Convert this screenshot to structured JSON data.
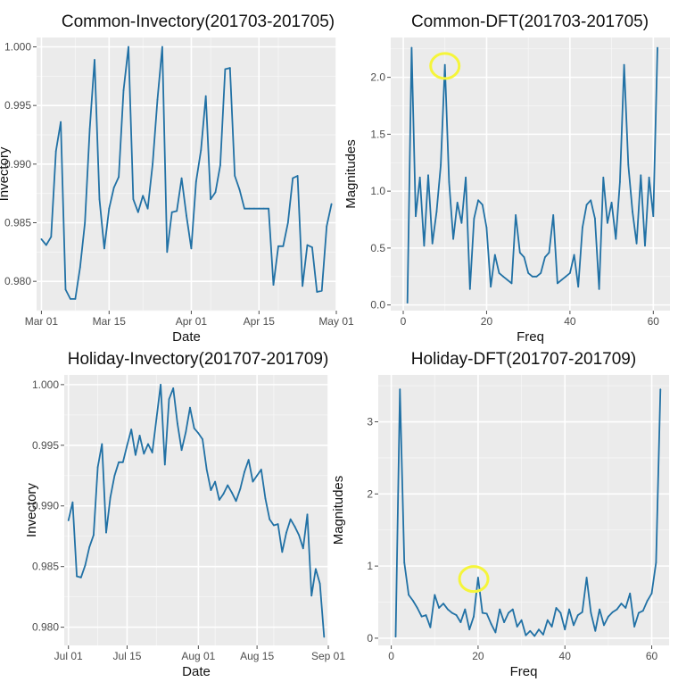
{
  "chart_data": [
    {
      "type": "line",
      "title": "Common-Invectory(201703-201705)",
      "xlabel": "Date",
      "ylabel": "Invectory",
      "x_axis": "date",
      "xlim": [
        "2017-02-28",
        "2017-05-01"
      ],
      "ylim": [
        0.9775,
        1.0008
      ],
      "x_ticks": [
        "2017-03-01",
        "2017-03-15",
        "2017-04-01",
        "2017-04-15",
        "2017-05-01"
      ],
      "x_tick_labels": [
        "Mar 01",
        "Mar 15",
        "Apr 01",
        "Apr 15",
        "May 01"
      ],
      "y_ticks": [
        0.98,
        0.985,
        0.99,
        0.995,
        1.0
      ],
      "y_tick_labels": [
        "0.980",
        "0.985",
        "0.990",
        "0.995",
        "1.000"
      ],
      "grid": true,
      "series": [
        {
          "color": "#2171a5",
          "x": [
            "2017-03-01",
            "2017-03-02",
            "2017-03-03",
            "2017-03-04",
            "2017-03-05",
            "2017-03-06",
            "2017-03-07",
            "2017-03-08",
            "2017-03-09",
            "2017-03-10",
            "2017-03-11",
            "2017-03-12",
            "2017-03-13",
            "2017-03-14",
            "2017-03-15",
            "2017-03-16",
            "2017-03-17",
            "2017-03-18",
            "2017-03-19",
            "2017-03-20",
            "2017-03-21",
            "2017-03-22",
            "2017-03-23",
            "2017-03-24",
            "2017-03-25",
            "2017-03-26",
            "2017-03-27",
            "2017-03-28",
            "2017-03-29",
            "2017-03-30",
            "2017-03-31",
            "2017-04-01",
            "2017-04-02",
            "2017-04-03",
            "2017-04-04",
            "2017-04-05",
            "2017-04-06",
            "2017-04-07",
            "2017-04-08",
            "2017-04-09",
            "2017-04-10",
            "2017-04-11",
            "2017-04-12",
            "2017-04-13",
            "2017-04-14",
            "2017-04-15",
            "2017-04-16",
            "2017-04-17",
            "2017-04-18",
            "2017-04-19",
            "2017-04-20",
            "2017-04-21",
            "2017-04-22",
            "2017-04-23",
            "2017-04-24",
            "2017-04-25",
            "2017-04-26",
            "2017-04-27",
            "2017-04-28",
            "2017-04-29",
            "2017-04-30"
          ],
          "y": [
            0.9836,
            0.9831,
            0.9838,
            0.9911,
            0.9936,
            0.9793,
            0.9785,
            0.9785,
            0.9812,
            0.985,
            0.993,
            0.9989,
            0.987,
            0.9828,
            0.9862,
            0.988,
            0.9889,
            0.9963,
            1.0,
            0.987,
            0.9859,
            0.9873,
            0.9862,
            0.99,
            0.9955,
            1.0,
            0.9825,
            0.9859,
            0.986,
            0.9888,
            0.9856,
            0.9828,
            0.9885,
            0.9912,
            0.9958,
            0.987,
            0.9876,
            0.9899,
            0.9981,
            0.9982,
            0.989,
            0.9878,
            0.9862,
            0.9862,
            0.9862,
            0.9862,
            0.9862,
            0.9862,
            0.9797,
            0.983,
            0.983,
            0.985,
            0.9888,
            0.989,
            0.9796,
            0.9831,
            0.9829,
            0.9791,
            0.9792,
            0.9847,
            0.9866
          ]
        }
      ]
    },
    {
      "type": "line",
      "title": "Common-DFT(201703-201705)",
      "xlabel": "Freq",
      "ylabel": "Magnitudes",
      "xlim": [
        -3,
        64
      ],
      "ylim": [
        -0.05,
        2.35
      ],
      "x_ticks": [
        0,
        20,
        40,
        60
      ],
      "x_tick_labels": [
        "0",
        "20",
        "40",
        "60"
      ],
      "y_ticks": [
        0.0,
        0.5,
        1.0,
        1.5,
        2.0
      ],
      "y_tick_labels": [
        "0.0",
        "0.5",
        "1.0",
        "1.5",
        "2.0"
      ],
      "grid": true,
      "annotations": [
        {
          "type": "circle",
          "x": 10,
          "y": 2.1,
          "color": "#f5f53a"
        }
      ],
      "series": [
        {
          "color": "#2171a5",
          "x": [
            1,
            2,
            3,
            4,
            5,
            6,
            7,
            8,
            9,
            10,
            11,
            12,
            13,
            14,
            15,
            16,
            17,
            18,
            19,
            20,
            21,
            22,
            23,
            24,
            25,
            26,
            27,
            28,
            29,
            30,
            31,
            32,
            33,
            34,
            35,
            36,
            37,
            38,
            39,
            40,
            41,
            42,
            43,
            44,
            45,
            46,
            47,
            48,
            49,
            50,
            51,
            52,
            53,
            54,
            55,
            56,
            57,
            58,
            59,
            60,
            61
          ],
          "y": [
            0.02,
            2.26,
            0.78,
            1.12,
            0.52,
            1.14,
            0.54,
            0.82,
            1.23,
            2.11,
            1.08,
            0.58,
            0.9,
            0.72,
            1.12,
            0.14,
            0.76,
            0.92,
            0.88,
            0.68,
            0.16,
            0.44,
            0.28,
            0.25,
            0.22,
            0.19,
            0.79,
            0.46,
            0.42,
            0.28,
            0.25,
            0.25,
            0.28,
            0.42,
            0.46,
            0.79,
            0.19,
            0.22,
            0.25,
            0.28,
            0.44,
            0.16,
            0.68,
            0.88,
            0.92,
            0.76,
            0.14,
            1.12,
            0.72,
            0.9,
            0.58,
            1.08,
            2.11,
            1.23,
            0.82,
            0.54,
            1.14,
            0.52,
            1.12,
            0.78,
            2.26
          ]
        }
      ]
    },
    {
      "type": "line",
      "title": "Holiday-Invectory(201707-201709)",
      "xlabel": "Date",
      "ylabel": "Invectory",
      "x_axis": "date",
      "xlim": [
        "2017-06-30",
        "2017-09-01"
      ],
      "ylim": [
        0.9785,
        1.0008
      ],
      "x_ticks": [
        "2017-07-01",
        "2017-07-15",
        "2017-08-01",
        "2017-08-15",
        "2017-09-01"
      ],
      "x_tick_labels": [
        "Jul 01",
        "Jul 15",
        "Aug 01",
        "Aug 15",
        "Sep 01"
      ],
      "y_ticks": [
        0.98,
        0.985,
        0.99,
        0.995,
        1.0
      ],
      "y_tick_labels": [
        "0.980",
        "0.985",
        "0.990",
        "0.995",
        "1.000"
      ],
      "grid": true,
      "series": [
        {
          "color": "#2171a5",
          "x": [
            "2017-07-01",
            "2017-07-02",
            "2017-07-03",
            "2017-07-04",
            "2017-07-05",
            "2017-07-06",
            "2017-07-07",
            "2017-07-08",
            "2017-07-09",
            "2017-07-10",
            "2017-07-11",
            "2017-07-12",
            "2017-07-13",
            "2017-07-14",
            "2017-07-15",
            "2017-07-16",
            "2017-07-17",
            "2017-07-18",
            "2017-07-19",
            "2017-07-20",
            "2017-07-21",
            "2017-07-22",
            "2017-07-23",
            "2017-07-24",
            "2017-07-25",
            "2017-07-26",
            "2017-07-27",
            "2017-07-28",
            "2017-07-29",
            "2017-07-30",
            "2017-07-31",
            "2017-08-01",
            "2017-08-02",
            "2017-08-03",
            "2017-08-04",
            "2017-08-05",
            "2017-08-06",
            "2017-08-07",
            "2017-08-08",
            "2017-08-09",
            "2017-08-10",
            "2017-08-11",
            "2017-08-12",
            "2017-08-13",
            "2017-08-14",
            "2017-08-15",
            "2017-08-16",
            "2017-08-17",
            "2017-08-18",
            "2017-08-19",
            "2017-08-20",
            "2017-08-21",
            "2017-08-22",
            "2017-08-23",
            "2017-08-24",
            "2017-08-25",
            "2017-08-26",
            "2017-08-27",
            "2017-08-28",
            "2017-08-29",
            "2017-08-30",
            "2017-08-31"
          ],
          "y": [
            0.9888,
            0.9903,
            0.9842,
            0.9841,
            0.9851,
            0.9866,
            0.9876,
            0.9932,
            0.9951,
            0.9878,
            0.9907,
            0.9925,
            0.9936,
            0.9936,
            0.995,
            0.9963,
            0.9942,
            0.9958,
            0.9943,
            0.9951,
            0.9944,
            0.9972,
            1.0,
            0.9934,
            0.9988,
            0.9997,
            0.9968,
            0.9946,
            0.9961,
            0.9981,
            0.9964,
            0.996,
            0.9955,
            0.993,
            0.9913,
            0.992,
            0.9905,
            0.991,
            0.9917,
            0.9911,
            0.9904,
            0.9914,
            0.9928,
            0.9938,
            0.992,
            0.9925,
            0.993,
            0.9906,
            0.9889,
            0.9884,
            0.9885,
            0.9862,
            0.9878,
            0.9889,
            0.9883,
            0.9876,
            0.9865,
            0.9893,
            0.9826,
            0.9848,
            0.9836,
            0.9792
          ]
        }
      ]
    },
    {
      "type": "line",
      "title": "Holiday-DFT(201707-201709)",
      "xlabel": "Freq",
      "ylabel": "Magnitudes",
      "xlim": [
        -3,
        64
      ],
      "ylim": [
        -0.1,
        3.65
      ],
      "x_ticks": [
        0,
        20,
        40,
        60
      ],
      "x_tick_labels": [
        "0",
        "20",
        "40",
        "60"
      ],
      "y_ticks": [
        0,
        1,
        2,
        3
      ],
      "y_tick_labels": [
        "0",
        "1",
        "2",
        "3"
      ],
      "grid": true,
      "annotations": [
        {
          "type": "circle",
          "x": 19,
          "y": 0.82,
          "color": "#f5f53a"
        }
      ],
      "series": [
        {
          "color": "#2171a5",
          "x": [
            1,
            2,
            3,
            4,
            5,
            6,
            7,
            8,
            9,
            10,
            11,
            12,
            13,
            14,
            15,
            16,
            17,
            18,
            19,
            20,
            21,
            22,
            23,
            24,
            25,
            26,
            27,
            28,
            29,
            30,
            31,
            32,
            33,
            34,
            35,
            36,
            37,
            38,
            39,
            40,
            41,
            42,
            43,
            44,
            45,
            46,
            47,
            48,
            49,
            50,
            51,
            52,
            53,
            54,
            55,
            56,
            57,
            58,
            59,
            60,
            61,
            62
          ],
          "y": [
            0.02,
            3.45,
            1.05,
            0.6,
            0.52,
            0.42,
            0.3,
            0.32,
            0.15,
            0.6,
            0.42,
            0.48,
            0.4,
            0.35,
            0.32,
            0.22,
            0.4,
            0.12,
            0.3,
            0.84,
            0.35,
            0.34,
            0.2,
            0.08,
            0.4,
            0.22,
            0.35,
            0.4,
            0.16,
            0.25,
            0.04,
            0.1,
            0.03,
            0.12,
            0.05,
            0.25,
            0.16,
            0.42,
            0.35,
            0.12,
            0.4,
            0.18,
            0.32,
            0.36,
            0.84,
            0.35,
            0.1,
            0.4,
            0.18,
            0.3,
            0.36,
            0.4,
            0.48,
            0.42,
            0.62,
            0.16,
            0.35,
            0.38,
            0.52,
            0.62,
            1.05,
            3.45
          ]
        }
      ]
    }
  ]
}
